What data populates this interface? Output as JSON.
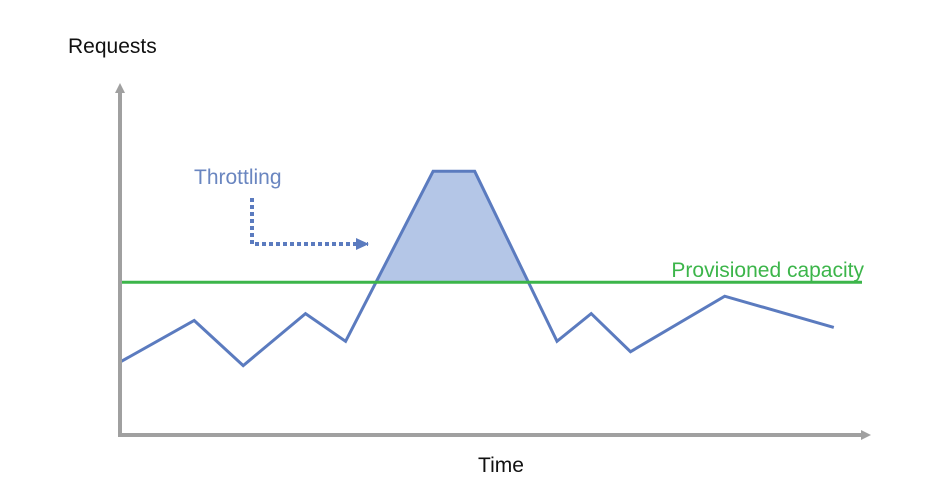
{
  "labels": {
    "y_axis": "Requests",
    "x_axis": "Time",
    "throttling": "Throttling",
    "capacity": "Provisioned capacity"
  },
  "colors": {
    "axis": "#a0a0a0",
    "demand_line": "#5b7bbf",
    "throttle_fill": "#b4c6e7",
    "capacity_line": "#3cb54a",
    "throttling_text": "#6a86c0",
    "capacity_text": "#3cb54a"
  },
  "chart_data": {
    "type": "line",
    "xlabel": "Time",
    "ylabel": "Requests",
    "grid": false,
    "capacity_level": 0.44,
    "demand": [
      {
        "t": 0.0,
        "v": 0.21
      },
      {
        "t": 0.1,
        "v": 0.33
      },
      {
        "t": 0.166,
        "v": 0.2
      },
      {
        "t": 0.25,
        "v": 0.35
      },
      {
        "t": 0.304,
        "v": 0.27
      },
      {
        "t": 0.422,
        "v": 0.76
      },
      {
        "t": 0.478,
        "v": 0.76
      },
      {
        "t": 0.589,
        "v": 0.27
      },
      {
        "t": 0.635,
        "v": 0.35
      },
      {
        "t": 0.688,
        "v": 0.24
      },
      {
        "t": 0.815,
        "v": 0.4
      },
      {
        "t": 0.962,
        "v": 0.31
      }
    ]
  }
}
